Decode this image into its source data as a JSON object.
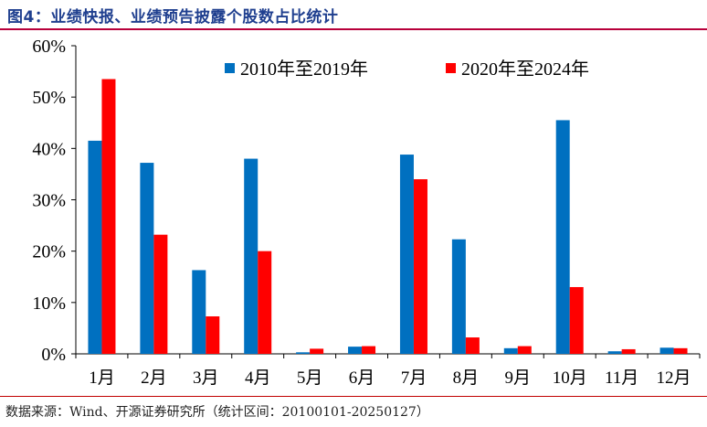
{
  "title": "图4：业绩快报、业绩预告披露个股数占比统计",
  "source": "数据来源：Wind、开源证券研究所（统计区间：20100101-20250127）",
  "chart_data": {
    "type": "bar",
    "categories": [
      "1月",
      "2月",
      "3月",
      "4月",
      "5月",
      "6月",
      "7月",
      "8月",
      "9月",
      "10月",
      "11月",
      "12月"
    ],
    "series": [
      {
        "name": "2010年至2019年",
        "color": "#0070c0",
        "values": [
          41.5,
          37.2,
          16.3,
          38.0,
          0.3,
          1.4,
          38.8,
          22.3,
          1.1,
          45.5,
          0.5,
          1.2
        ]
      },
      {
        "name": "2020年至2024年",
        "color": "#ff0000",
        "values": [
          53.5,
          23.2,
          7.3,
          20.0,
          1.0,
          1.5,
          34.0,
          3.2,
          1.5,
          13.0,
          0.9,
          1.1
        ]
      }
    ],
    "ylim": [
      0,
      60
    ],
    "yticks": [
      0,
      10,
      20,
      30,
      40,
      50,
      60
    ],
    "ytick_labels": [
      "0%",
      "10%",
      "20%",
      "30%",
      "40%",
      "50%",
      "60%"
    ],
    "xlabel": "",
    "ylabel": "",
    "grid": false,
    "legend_position": "top-center"
  }
}
